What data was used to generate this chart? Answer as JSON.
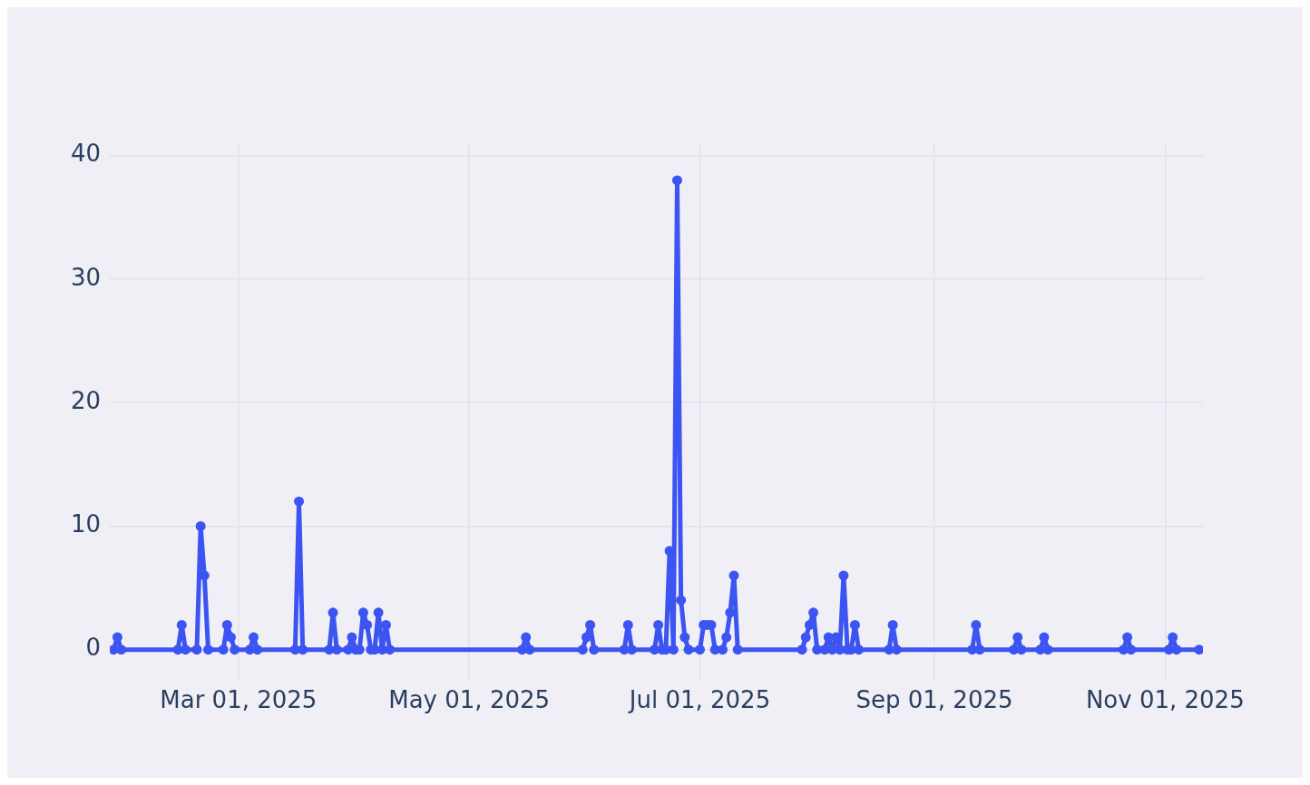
{
  "chart_data": {
    "type": "line",
    "color": "#3b54f2",
    "marker": "circle",
    "grid": true,
    "legend": false,
    "xlim": [
      "2025-01-26",
      "2025-11-11"
    ],
    "xticks": [
      {
        "value": "2025-03-01",
        "label": "Mar 01, 2025"
      },
      {
        "value": "2025-05-01",
        "label": "May 01, 2025"
      },
      {
        "value": "2025-07-01",
        "label": "Jul 01, 2025"
      },
      {
        "value": "2025-09-01",
        "label": "Sep 01, 2025"
      },
      {
        "value": "2025-11-01",
        "label": "Nov 01, 2025"
      }
    ],
    "ylim": [
      -2.5,
      41
    ],
    "yticks": [
      0,
      10,
      20,
      30,
      40
    ],
    "x": [
      "2025-01-27",
      "2025-01-28",
      "2025-01-29",
      "2025-02-13",
      "2025-02-14",
      "2025-02-15",
      "2025-02-18",
      "2025-02-19",
      "2025-02-20",
      "2025-02-21",
      "2025-02-25",
      "2025-02-26",
      "2025-02-27",
      "2025-02-28",
      "2025-03-04",
      "2025-03-05",
      "2025-03-06",
      "2025-03-16",
      "2025-03-17",
      "2025-03-18",
      "2025-03-25",
      "2025-03-26",
      "2025-03-27",
      "2025-03-30",
      "2025-03-31",
      "2025-04-01",
      "2025-04-02",
      "2025-04-03",
      "2025-04-04",
      "2025-04-05",
      "2025-04-06",
      "2025-04-07",
      "2025-04-08",
      "2025-04-09",
      "2025-04-10",
      "2025-05-15",
      "2025-05-16",
      "2025-05-17",
      "2025-05-31",
      "2025-06-01",
      "2025-06-02",
      "2025-06-03",
      "2025-06-11",
      "2025-06-12",
      "2025-06-13",
      "2025-06-19",
      "2025-06-20",
      "2025-06-21",
      "2025-06-22",
      "2025-06-23",
      "2025-06-24",
      "2025-06-25",
      "2025-06-26",
      "2025-06-27",
      "2025-06-28",
      "2025-07-01",
      "2025-07-02",
      "2025-07-03",
      "2025-07-04",
      "2025-07-05",
      "2025-07-07",
      "2025-07-08",
      "2025-07-09",
      "2025-07-10",
      "2025-07-11",
      "2025-07-28",
      "2025-07-29",
      "2025-07-30",
      "2025-07-31",
      "2025-08-01",
      "2025-08-03",
      "2025-08-04",
      "2025-08-05",
      "2025-08-06",
      "2025-08-07",
      "2025-08-08",
      "2025-08-09",
      "2025-08-10",
      "2025-08-11",
      "2025-08-12",
      "2025-08-20",
      "2025-08-21",
      "2025-08-22",
      "2025-09-11",
      "2025-09-12",
      "2025-09-13",
      "2025-09-22",
      "2025-09-23",
      "2025-09-24",
      "2025-09-29",
      "2025-09-30",
      "2025-10-01",
      "2025-10-21",
      "2025-10-22",
      "2025-10-23",
      "2025-11-02",
      "2025-11-03",
      "2025-11-04",
      "2025-11-10"
    ],
    "values": [
      0,
      1,
      0,
      0,
      2,
      0,
      0,
      10,
      6,
      0,
      0,
      2,
      1,
      0,
      0,
      1,
      0,
      0,
      12,
      0,
      0,
      3,
      0,
      0,
      1,
      0,
      0,
      3,
      2,
      0,
      0,
      3,
      0,
      2,
      0,
      0,
      1,
      0,
      0,
      1,
      2,
      0,
      0,
      2,
      0,
      0,
      2,
      0,
      0,
      8,
      0,
      38,
      4,
      1,
      0,
      0,
      2,
      2,
      2,
      0,
      0,
      1,
      3,
      6,
      0,
      0,
      1,
      2,
      3,
      0,
      0,
      1,
      0,
      1,
      0,
      6,
      0,
      0,
      2,
      0,
      0,
      2,
      0,
      0,
      2,
      0,
      0,
      1,
      0,
      0,
      1,
      0,
      0,
      1,
      0,
      0,
      1,
      0,
      0
    ]
  }
}
